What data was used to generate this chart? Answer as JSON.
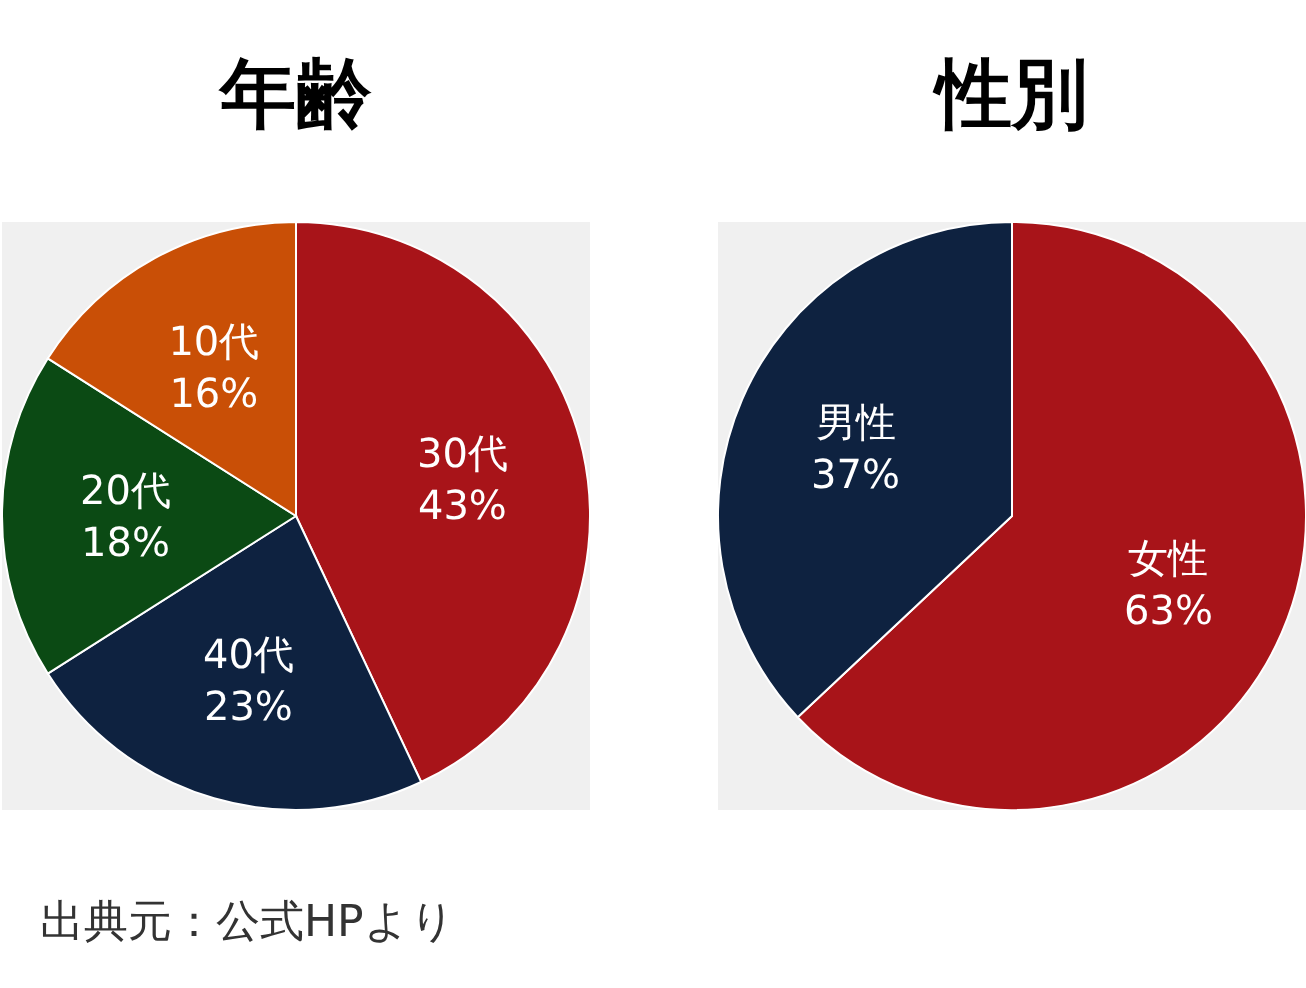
{
  "chart_data": [
    {
      "type": "pie",
      "title": "年齢",
      "categories": [
        "30代",
        "40代",
        "20代",
        "10代"
      ],
      "values": [
        43,
        23,
        18,
        16
      ],
      "colors": [
        "#a81419",
        "#0e2240",
        "#0b4a14",
        "#c94f06"
      ],
      "value_labels": [
        "43%",
        "23%",
        "18%",
        "16%"
      ],
      "annotations": [
        "出典元：公式HPより"
      ]
    },
    {
      "type": "pie",
      "title": "性別",
      "categories": [
        "女性",
        "男性"
      ],
      "values": [
        63,
        37
      ],
      "colors": [
        "#a81419",
        "#0e2240"
      ],
      "value_labels": [
        "63%",
        "37%"
      ]
    }
  ]
}
